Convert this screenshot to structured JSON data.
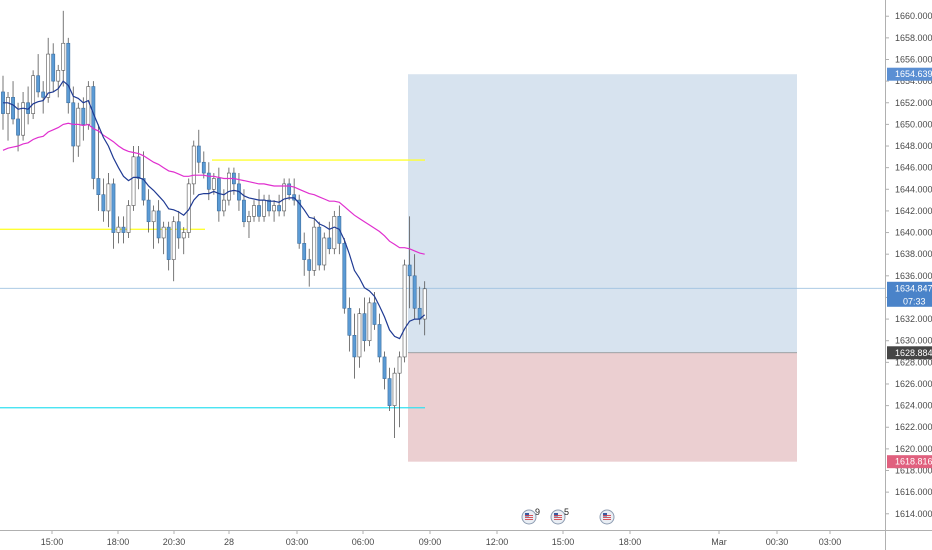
{
  "chart_data": {
    "type": "candlestick",
    "ylim": [
      1612.5,
      1661.5
    ],
    "y_ticks": [
      "1614.000",
      "1616.000",
      "1618.000",
      "1620.000",
      "1622.000",
      "1624.000",
      "1626.000",
      "1628.000",
      "1630.000",
      "1632.000",
      "1634.000",
      "1636.000",
      "1638.000",
      "1640.000",
      "1642.000",
      "1644.000",
      "1646.000",
      "1648.000",
      "1650.000",
      "1652.000",
      "1654.000",
      "1656.000",
      "1658.000",
      "1660.000"
    ],
    "x_ticks": [
      "15:00",
      "18:00",
      "20:30",
      "28",
      "03:00",
      "06:00",
      "09:00",
      "12:00",
      "15:00",
      "18:00",
      "Mar",
      "00:30",
      "03:00"
    ],
    "candles": [
      {
        "o": 1653.0,
        "h": 1654.5,
        "l": 1649.5,
        "c": 1651.0
      },
      {
        "o": 1651.0,
        "h": 1653.0,
        "l": 1648.5,
        "c": 1652.5
      },
      {
        "o": 1652.5,
        "h": 1654.0,
        "l": 1650.0,
        "c": 1650.5
      },
      {
        "o": 1650.5,
        "h": 1652.0,
        "l": 1647.5,
        "c": 1649.0
      },
      {
        "o": 1649.0,
        "h": 1653.0,
        "l": 1648.5,
        "c": 1652.0
      },
      {
        "o": 1652.0,
        "h": 1653.5,
        "l": 1650.0,
        "c": 1651.0
      },
      {
        "o": 1651.0,
        "h": 1655.0,
        "l": 1650.5,
        "c": 1654.5
      },
      {
        "o": 1654.5,
        "h": 1656.5,
        "l": 1652.5,
        "c": 1653.0
      },
      {
        "o": 1653.0,
        "h": 1654.0,
        "l": 1651.0,
        "c": 1652.5
      },
      {
        "o": 1652.5,
        "h": 1658.0,
        "l": 1652.0,
        "c": 1656.5
      },
      {
        "o": 1656.5,
        "h": 1657.5,
        "l": 1653.0,
        "c": 1654.0
      },
      {
        "o": 1654.0,
        "h": 1655.5,
        "l": 1652.5,
        "c": 1655.0
      },
      {
        "o": 1655.0,
        "h": 1660.5,
        "l": 1653.5,
        "c": 1657.5
      },
      {
        "o": 1657.5,
        "h": 1658.0,
        "l": 1651.0,
        "c": 1652.0
      },
      {
        "o": 1652.0,
        "h": 1653.5,
        "l": 1646.5,
        "c": 1648.0
      },
      {
        "o": 1648.0,
        "h": 1652.0,
        "l": 1647.0,
        "c": 1651.5
      },
      {
        "o": 1651.5,
        "h": 1652.5,
        "l": 1648.5,
        "c": 1650.0
      },
      {
        "o": 1650.0,
        "h": 1654.0,
        "l": 1649.5,
        "c": 1653.5
      },
      {
        "o": 1653.5,
        "h": 1654.0,
        "l": 1644.0,
        "c": 1645.0
      },
      {
        "o": 1645.0,
        "h": 1650.0,
        "l": 1642.0,
        "c": 1643.5
      },
      {
        "o": 1643.5,
        "h": 1645.0,
        "l": 1641.0,
        "c": 1642.0
      },
      {
        "o": 1642.0,
        "h": 1645.5,
        "l": 1640.5,
        "c": 1644.5
      },
      {
        "o": 1644.5,
        "h": 1645.0,
        "l": 1638.5,
        "c": 1640.0
      },
      {
        "o": 1640.0,
        "h": 1641.5,
        "l": 1639.0,
        "c": 1640.5
      },
      {
        "o": 1640.5,
        "h": 1641.5,
        "l": 1639.0,
        "c": 1640.0
      },
      {
        "o": 1640.0,
        "h": 1643.0,
        "l": 1639.5,
        "c": 1642.5
      },
      {
        "o": 1642.5,
        "h": 1648.0,
        "l": 1642.0,
        "c": 1647.0
      },
      {
        "o": 1647.0,
        "h": 1648.0,
        "l": 1644.0,
        "c": 1645.0
      },
      {
        "o": 1645.0,
        "h": 1647.5,
        "l": 1642.5,
        "c": 1643.0
      },
      {
        "o": 1643.0,
        "h": 1644.0,
        "l": 1640.0,
        "c": 1641.0
      },
      {
        "o": 1641.0,
        "h": 1642.5,
        "l": 1638.5,
        "c": 1642.0
      },
      {
        "o": 1642.0,
        "h": 1643.0,
        "l": 1639.0,
        "c": 1639.5
      },
      {
        "o": 1639.5,
        "h": 1641.0,
        "l": 1638.0,
        "c": 1640.5
      },
      {
        "o": 1640.5,
        "h": 1641.0,
        "l": 1636.5,
        "c": 1637.5
      },
      {
        "o": 1637.5,
        "h": 1641.5,
        "l": 1635.5,
        "c": 1641.0
      },
      {
        "o": 1641.0,
        "h": 1642.0,
        "l": 1638.5,
        "c": 1639.5
      },
      {
        "o": 1639.5,
        "h": 1640.5,
        "l": 1638.0,
        "c": 1640.0
      },
      {
        "o": 1640.0,
        "h": 1645.0,
        "l": 1639.5,
        "c": 1644.5
      },
      {
        "o": 1644.5,
        "h": 1648.5,
        "l": 1643.5,
        "c": 1648.0
      },
      {
        "o": 1648.0,
        "h": 1649.5,
        "l": 1645.5,
        "c": 1646.5
      },
      {
        "o": 1646.5,
        "h": 1647.5,
        "l": 1645.0,
        "c": 1645.5
      },
      {
        "o": 1645.5,
        "h": 1646.5,
        "l": 1643.0,
        "c": 1644.0
      },
      {
        "o": 1644.0,
        "h": 1645.5,
        "l": 1643.5,
        "c": 1645.0
      },
      {
        "o": 1645.0,
        "h": 1646.0,
        "l": 1641.0,
        "c": 1642.0
      },
      {
        "o": 1642.0,
        "h": 1644.0,
        "l": 1641.5,
        "c": 1643.0
      },
      {
        "o": 1643.0,
        "h": 1646.0,
        "l": 1642.5,
        "c": 1645.5
      },
      {
        "o": 1645.5,
        "h": 1646.0,
        "l": 1643.5,
        "c": 1644.5
      },
      {
        "o": 1644.5,
        "h": 1645.5,
        "l": 1642.0,
        "c": 1643.0
      },
      {
        "o": 1643.0,
        "h": 1644.0,
        "l": 1640.5,
        "c": 1641.0
      },
      {
        "o": 1641.0,
        "h": 1642.0,
        "l": 1639.5,
        "c": 1641.5
      },
      {
        "o": 1641.5,
        "h": 1643.0,
        "l": 1641.0,
        "c": 1642.5
      },
      {
        "o": 1642.5,
        "h": 1644.0,
        "l": 1641.0,
        "c": 1641.5
      },
      {
        "o": 1641.5,
        "h": 1643.5,
        "l": 1641.0,
        "c": 1643.0
      },
      {
        "o": 1643.0,
        "h": 1643.5,
        "l": 1641.5,
        "c": 1642.0
      },
      {
        "o": 1642.0,
        "h": 1643.0,
        "l": 1641.0,
        "c": 1642.5
      },
      {
        "o": 1642.5,
        "h": 1643.5,
        "l": 1641.5,
        "c": 1642.0
      },
      {
        "o": 1642.0,
        "h": 1645.0,
        "l": 1641.5,
        "c": 1644.5
      },
      {
        "o": 1644.5,
        "h": 1645.0,
        "l": 1643.0,
        "c": 1643.5
      },
      {
        "o": 1643.5,
        "h": 1645.0,
        "l": 1642.5,
        "c": 1643.0
      },
      {
        "o": 1643.0,
        "h": 1643.5,
        "l": 1638.5,
        "c": 1639.0
      },
      {
        "o": 1639.0,
        "h": 1640.0,
        "l": 1636.0,
        "c": 1637.5
      },
      {
        "o": 1637.5,
        "h": 1638.5,
        "l": 1635.0,
        "c": 1636.5
      },
      {
        "o": 1636.5,
        "h": 1641.5,
        "l": 1636.0,
        "c": 1640.5
      },
      {
        "o": 1640.5,
        "h": 1641.0,
        "l": 1636.5,
        "c": 1637.0
      },
      {
        "o": 1637.0,
        "h": 1640.0,
        "l": 1636.5,
        "c": 1639.5
      },
      {
        "o": 1639.5,
        "h": 1641.0,
        "l": 1638.0,
        "c": 1638.5
      },
      {
        "o": 1638.5,
        "h": 1642.0,
        "l": 1638.0,
        "c": 1641.5
      },
      {
        "o": 1641.5,
        "h": 1642.5,
        "l": 1638.0,
        "c": 1639.0
      },
      {
        "o": 1639.0,
        "h": 1639.5,
        "l": 1632.5,
        "c": 1633.0
      },
      {
        "o": 1633.0,
        "h": 1634.0,
        "l": 1629.0,
        "c": 1630.5
      },
      {
        "o": 1630.5,
        "h": 1632.5,
        "l": 1626.5,
        "c": 1628.5
      },
      {
        "o": 1628.5,
        "h": 1633.0,
        "l": 1627.5,
        "c": 1632.5
      },
      {
        "o": 1632.5,
        "h": 1634.0,
        "l": 1629.0,
        "c": 1630.0
      },
      {
        "o": 1630.0,
        "h": 1634.0,
        "l": 1629.5,
        "c": 1633.5
      },
      {
        "o": 1633.5,
        "h": 1634.5,
        "l": 1631.0,
        "c": 1631.5
      },
      {
        "o": 1631.5,
        "h": 1632.5,
        "l": 1628.0,
        "c": 1628.5
      },
      {
        "o": 1628.5,
        "h": 1629.0,
        "l": 1625.5,
        "c": 1626.5
      },
      {
        "o": 1626.5,
        "h": 1627.5,
        "l": 1623.5,
        "c": 1624.0
      },
      {
        "o": 1624.0,
        "h": 1627.5,
        "l": 1621.0,
        "c": 1627.0
      },
      {
        "o": 1627.0,
        "h": 1629.0,
        "l": 1622.0,
        "c": 1628.5
      },
      {
        "o": 1628.5,
        "h": 1637.5,
        "l": 1628.0,
        "c": 1637.0
      },
      {
        "o": 1637.0,
        "h": 1641.5,
        "l": 1633.0,
        "c": 1636.0
      },
      {
        "o": 1636.0,
        "h": 1638.0,
        "l": 1632.0,
        "c": 1633.0
      },
      {
        "o": 1633.0,
        "h": 1635.0,
        "l": 1631.5,
        "c": 1632.0
      },
      {
        "o": 1632.0,
        "h": 1635.5,
        "l": 1630.5,
        "c": 1634.8
      }
    ],
    "ema_fast": [
      1652.0,
      1652.0,
      1651.8,
      1651.4,
      1651.5,
      1651.4,
      1651.9,
      1652.1,
      1652.2,
      1652.9,
      1653.0,
      1653.3,
      1654.0,
      1653.6,
      1652.6,
      1652.4,
      1652.0,
      1652.2,
      1651.0,
      1649.9,
      1648.8,
      1648.0,
      1646.9,
      1646.0,
      1645.2,
      1644.8,
      1645.1,
      1645.1,
      1644.9,
      1644.3,
      1643.9,
      1643.4,
      1642.9,
      1642.2,
      1642.1,
      1641.9,
      1641.6,
      1642.1,
      1643.0,
      1643.5,
      1643.6,
      1643.6,
      1643.8,
      1643.6,
      1643.5,
      1643.8,
      1643.9,
      1643.8,
      1643.4,
      1643.2,
      1643.1,
      1643.0,
      1643.0,
      1642.9,
      1642.9,
      1642.8,
      1643.1,
      1643.2,
      1643.2,
      1642.7,
      1642.1,
      1641.4,
      1641.3,
      1640.8,
      1640.6,
      1640.3,
      1640.5,
      1640.3,
      1639.3,
      1638.0,
      1636.5,
      1635.8,
      1634.9,
      1634.6,
      1634.1,
      1633.2,
      1632.2,
      1631.0,
      1630.4,
      1630.2,
      1631.1,
      1631.8,
      1632.0,
      1632.0,
      1632.4
    ],
    "ema_slow": [
      1647.6,
      1647.8,
      1647.9,
      1648.0,
      1648.2,
      1648.3,
      1648.6,
      1648.8,
      1648.9,
      1649.3,
      1649.5,
      1649.7,
      1650.0,
      1650.1,
      1650.0,
      1650.0,
      1649.9,
      1650.0,
      1649.6,
      1649.4,
      1649.0,
      1648.7,
      1648.4,
      1648.0,
      1647.7,
      1647.5,
      1647.4,
      1647.3,
      1647.1,
      1646.8,
      1646.5,
      1646.3,
      1646.0,
      1645.7,
      1645.6,
      1645.4,
      1645.2,
      1645.2,
      1645.3,
      1645.3,
      1645.3,
      1645.2,
      1645.2,
      1645.1,
      1645.0,
      1645.0,
      1645.0,
      1644.9,
      1644.8,
      1644.7,
      1644.6,
      1644.5,
      1644.5,
      1644.4,
      1644.3,
      1644.3,
      1644.3,
      1644.3,
      1644.2,
      1644.0,
      1643.8,
      1643.6,
      1643.5,
      1643.3,
      1643.1,
      1642.9,
      1642.9,
      1642.8,
      1642.4,
      1642.0,
      1641.6,
      1641.3,
      1641.0,
      1640.7,
      1640.4,
      1640.1,
      1639.7,
      1639.2,
      1638.9,
      1638.6,
      1638.6,
      1638.5,
      1638.3,
      1638.1,
      1638.0
    ],
    "levels": [
      {
        "name": "upper-yellow",
        "price": 1646.7,
        "color": "#ffff33"
      },
      {
        "name": "lower-yellow",
        "price": 1640.3,
        "color": "#ffff33"
      },
      {
        "name": "cyan",
        "price": 1623.8,
        "color": "#33e0f0"
      }
    ],
    "position": {
      "target": 1654.639,
      "entry": 1628.884,
      "stop": 1618.816
    },
    "price_labels": {
      "target": "1654.639",
      "current": "1634.847",
      "countdown": "07:33",
      "entry": "1628.884",
      "stop": "1618.816"
    },
    "events": [
      {
        "count": "9"
      },
      {
        "count": "5"
      },
      {
        "count": ""
      }
    ],
    "colors": {
      "candle_fill": "#5b9bd5",
      "candle_border": "#3d6e9e",
      "ema_fast": "#1f3a93",
      "ema_slow": "#e02fcf",
      "profit_zone": "#d7e3ef",
      "loss_zone": "#ebcfd1",
      "current_label": "#4a83c9",
      "entry_label": "#454545",
      "stop_label": "#e0607e",
      "target_label": "#5b8fd3"
    }
  }
}
